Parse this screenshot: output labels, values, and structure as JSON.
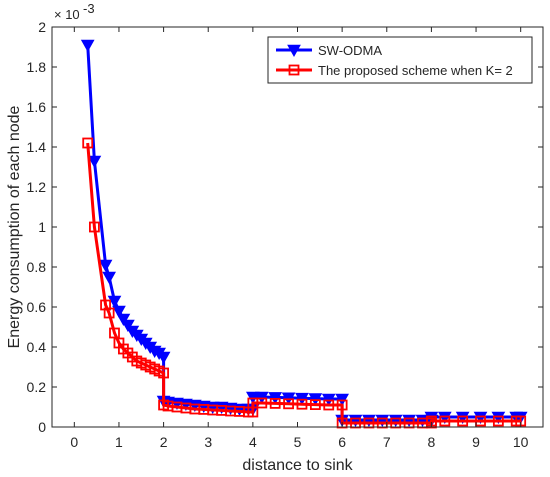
{
  "chart_data": {
    "type": "line",
    "title": "",
    "xlabel": "distance to sink",
    "ylabel": "Energy consumption of each node",
    "y_exponent_label": "× 10",
    "y_exponent_power": "-3",
    "xlim": [
      -0.5,
      10.5
    ],
    "ylim": [
      0,
      2
    ],
    "x_ticks": [
      0,
      1,
      2,
      3,
      4,
      5,
      6,
      7,
      8,
      9,
      10
    ],
    "x_tick_labels": [
      "0",
      "1",
      "2",
      "3",
      "4",
      "5",
      "6",
      "7",
      "8",
      "9",
      "10"
    ],
    "y_ticks": [
      0,
      0.2,
      0.4,
      0.6,
      0.8,
      1.0,
      1.2,
      1.4,
      1.6,
      1.8,
      2.0
    ],
    "y_tick_labels": [
      "0",
      "0.2",
      "0.4",
      "0.6",
      "0.8",
      "1",
      "1.2",
      "1.4",
      "1.6",
      "1.8",
      "2"
    ],
    "grid": false,
    "legend_position": "top-right",
    "series": [
      {
        "name": "SW-ODMA",
        "color": "#0000ff",
        "marker": "triangle-down",
        "x": [
          0.3,
          0.45,
          0.7,
          0.78,
          0.9,
          1.0,
          1.1,
          1.2,
          1.3,
          1.4,
          1.5,
          1.6,
          1.7,
          1.8,
          1.9,
          2.0,
          2.0,
          2.1,
          2.3,
          2.5,
          2.7,
          2.9,
          3.1,
          3.3,
          3.5,
          3.7,
          3.9,
          4.0,
          4.0,
          4.2,
          4.5,
          4.8,
          5.1,
          5.4,
          5.7,
          6.0,
          6.0,
          6.3,
          6.6,
          6.9,
          7.2,
          7.5,
          7.8,
          8.0,
          8.0,
          8.3,
          8.7,
          9.1,
          9.5,
          9.9,
          10.0
        ],
        "y": [
          1.91,
          1.33,
          0.81,
          0.75,
          0.63,
          0.58,
          0.54,
          0.51,
          0.48,
          0.46,
          0.44,
          0.42,
          0.4,
          0.38,
          0.37,
          0.35,
          0.13,
          0.125,
          0.12,
          0.115,
          0.11,
          0.105,
          0.1,
          0.1,
          0.095,
          0.09,
          0.09,
          0.09,
          0.15,
          0.15,
          0.148,
          0.146,
          0.144,
          0.142,
          0.14,
          0.14,
          0.035,
          0.035,
          0.035,
          0.035,
          0.035,
          0.035,
          0.035,
          0.035,
          0.05,
          0.05,
          0.05,
          0.05,
          0.05,
          0.05,
          0.05
        ]
      },
      {
        "name": "The proposed scheme when K= 2",
        "color": "#ff0000",
        "marker": "square",
        "x": [
          0.3,
          0.45,
          0.7,
          0.78,
          0.9,
          1.0,
          1.1,
          1.2,
          1.3,
          1.4,
          1.5,
          1.6,
          1.7,
          1.8,
          1.9,
          2.0,
          2.0,
          2.1,
          2.3,
          2.5,
          2.7,
          2.9,
          3.1,
          3.3,
          3.5,
          3.7,
          3.9,
          4.0,
          4.0,
          4.2,
          4.5,
          4.8,
          5.1,
          5.4,
          5.7,
          6.0,
          6.0,
          6.3,
          6.6,
          6.9,
          7.2,
          7.5,
          7.8,
          8.0,
          8.0,
          8.3,
          8.7,
          9.1,
          9.5,
          9.9,
          10.0
        ],
        "y": [
          1.42,
          1.0,
          0.61,
          0.57,
          0.47,
          0.42,
          0.39,
          0.37,
          0.35,
          0.33,
          0.32,
          0.31,
          0.3,
          0.29,
          0.28,
          0.27,
          0.11,
          0.105,
          0.1,
          0.095,
          0.09,
          0.088,
          0.085,
          0.083,
          0.08,
          0.078,
          0.075,
          0.075,
          0.12,
          0.12,
          0.118,
          0.116,
          0.114,
          0.112,
          0.11,
          0.11,
          0.02,
          0.02,
          0.02,
          0.02,
          0.02,
          0.02,
          0.02,
          0.02,
          0.03,
          0.03,
          0.03,
          0.03,
          0.03,
          0.03,
          0.03
        ]
      }
    ]
  }
}
